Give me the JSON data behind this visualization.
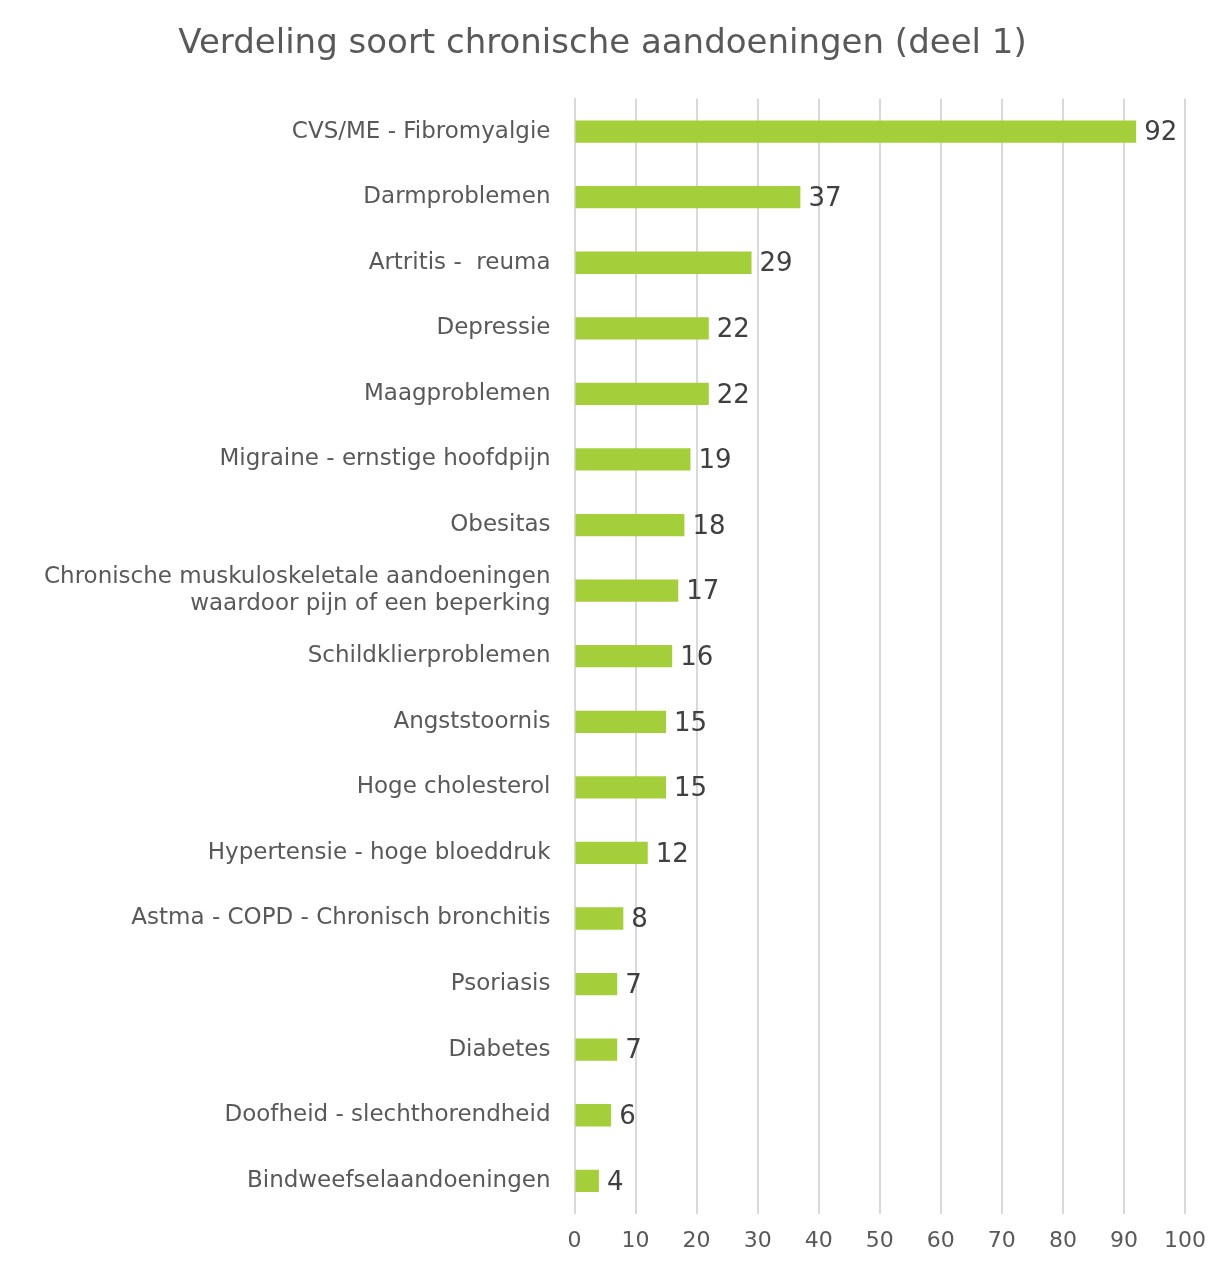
{
  "chart_data": {
    "type": "bar",
    "orientation": "horizontal",
    "title": "Verdeling soort chronische aandoeningen (deel 1)",
    "categories": [
      "CVS/ME - Fibromyalgie",
      "Darmproblemen",
      "Artritis -  reuma",
      "Depressie",
      "Maagproblemen",
      "Migraine - ernstige hoofdpijn",
      "Obesitas",
      "Chronische muskuloskeletale aandoeningen waardoor pijn of een beperking",
      "Schildklierproblemen",
      "Angststoornis",
      "Hoge cholesterol",
      "Hypertensie - hoge bloeddruk",
      "Astma - COPD - Chronisch bronchitis",
      "Psoriasis",
      "Diabetes",
      "Doofheid - slechthorendheid",
      "Bindweefselaandoeningen"
    ],
    "values": [
      92,
      37,
      29,
      22,
      22,
      19,
      18,
      17,
      16,
      15,
      15,
      12,
      8,
      7,
      7,
      6,
      4
    ],
    "color": "#a5cf3a",
    "xlim": [
      0,
      100
    ],
    "xticks": [
      0,
      10,
      20,
      30,
      40,
      50,
      60,
      70,
      80,
      90,
      100
    ],
    "grid": "x",
    "legend": false,
    "data_labels": true
  }
}
